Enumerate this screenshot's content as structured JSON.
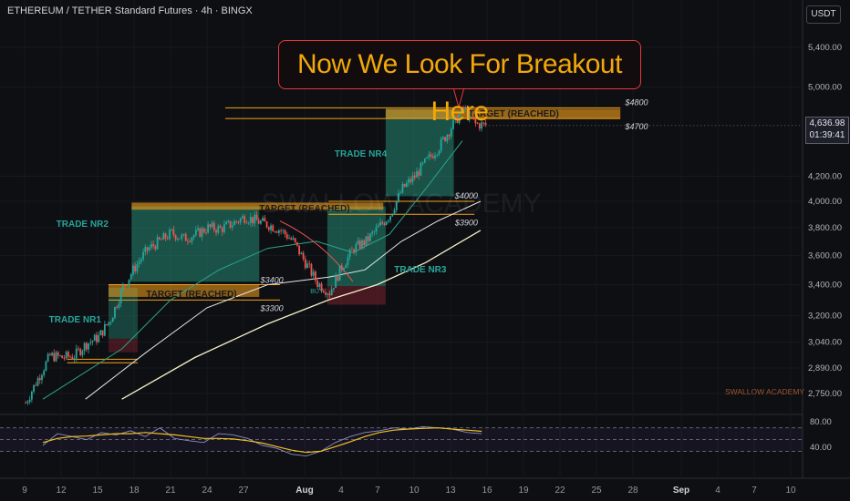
{
  "header": {
    "title": "ETHEREUM / TETHER Standard Futures · 4h · BINGX",
    "currency": "USDT"
  },
  "callout": "Now We Look For Breakout Here",
  "watermark": "SWALLOW ACADEMY",
  "brand_footer": "SWALLOW ACADEMY",
  "last_price": "4,636.98",
  "countdown": "01:39:41",
  "colors": {
    "up": "#26a69a",
    "down": "#ef5350",
    "orange": "#f7a21b",
    "green_zone": "#2aa58a",
    "red_zone": "#a2283a",
    "callout": "#f0a80b",
    "rsi": "#8b8fc7",
    "rsi_ma": "#f0c020"
  },
  "chart_data": [
    {
      "type": "candlestick",
      "title": "ETHEREUM / TETHER Standard Futures · 4h · BINGX",
      "x_ticks": [
        "9",
        "12",
        "15",
        "18",
        "21",
        "24",
        "27",
        "Aug",
        "4",
        "7",
        "10",
        "13",
        "16",
        "19",
        "22",
        "25",
        "28",
        "Sep",
        "4",
        "7",
        "10"
      ],
      "y_ticks": [
        "5,400.00",
        "5,000.00",
        "4,200.00",
        "4,000.00",
        "3,800.00",
        "3,600.00",
        "3,400.00",
        "3,200.00",
        "3,040.00",
        "2,890.00",
        "2,750.00"
      ],
      "price_path": [
        [
          "9",
          2700
        ],
        [
          "10",
          2830
        ],
        [
          "11",
          2960
        ],
        [
          "12",
          2950
        ],
        [
          "13",
          2960
        ],
        [
          "14",
          3030
        ],
        [
          "15",
          3070
        ],
        [
          "16",
          3180
        ],
        [
          "17",
          3380
        ],
        [
          "18",
          3520
        ],
        [
          "19",
          3640
        ],
        [
          "20",
          3700
        ],
        [
          "21",
          3760
        ],
        [
          "22",
          3720
        ],
        [
          "23",
          3750
        ],
        [
          "24",
          3800
        ],
        [
          "25",
          3790
        ],
        [
          "26",
          3830
        ],
        [
          "27",
          3880
        ],
        [
          "28",
          3850
        ],
        [
          "29",
          3820
        ],
        [
          "30",
          3780
        ],
        [
          "31",
          3700
        ],
        [
          "Aug",
          3550
        ],
        [
          "2",
          3410
        ],
        [
          "3",
          3350
        ],
        [
          "4",
          3520
        ],
        [
          "5",
          3650
        ],
        [
          "6",
          3700
        ],
        [
          "7",
          3800
        ],
        [
          "8",
          3900
        ],
        [
          "9",
          4100
        ],
        [
          "10",
          4200
        ],
        [
          "11",
          4330
        ],
        [
          "12",
          4450
        ],
        [
          "13",
          4620
        ],
        [
          "14",
          4790
        ],
        [
          "15",
          4650
        ],
        [
          "16",
          4636.98
        ]
      ],
      "moving_averages": [
        {
          "name": "short",
          "color": "#26a69a"
        },
        {
          "name": "mid",
          "color": "#e6e6e6"
        },
        {
          "name": "long",
          "color": "#f5f0c8"
        }
      ],
      "trade_zones": [
        {
          "label": "TRADE NR1",
          "target_label": "TARGET (REACHED)",
          "entry": 3050,
          "stop": 2970,
          "target": 3400,
          "levels": [
            "$3400",
            "$3300"
          ]
        },
        {
          "label": "TRADE NR2",
          "target_label": "TARGET (REACHED)",
          "entry": 3410,
          "target": 3900
        },
        {
          "label": "TRADE NR3",
          "target_label": "",
          "entry": 3400,
          "target": 3900,
          "levels": [
            "$4000",
            "$3900"
          ]
        },
        {
          "label": "TRADE NR4",
          "target_label": "TARGET (REACHED)",
          "entry": 4000,
          "target": 4800,
          "levels": [
            "$4800",
            "$4700"
          ]
        }
      ],
      "annotations": [
        "BUY"
      ]
    },
    {
      "type": "line",
      "title": "",
      "y_ticks": [
        "80.00",
        "40.00"
      ],
      "series": [
        {
          "values": [
            40,
            60,
            55,
            50,
            62,
            58,
            65,
            55,
            70,
            52,
            48,
            45,
            60,
            58,
            52,
            40,
            35,
            25,
            22,
            30,
            45,
            55,
            62,
            65,
            70,
            68,
            72,
            70,
            68,
            62,
            60
          ]
        },
        {
          "values": [
            45,
            52,
            55,
            56,
            58,
            60,
            60,
            62,
            60,
            58,
            55,
            52,
            52,
            51,
            48,
            44,
            38,
            32,
            28,
            30,
            38,
            46,
            55,
            62,
            66,
            68,
            69,
            70,
            68,
            66,
            64
          ]
        }
      ],
      "levels": [
        70,
        50,
        30
      ]
    }
  ]
}
